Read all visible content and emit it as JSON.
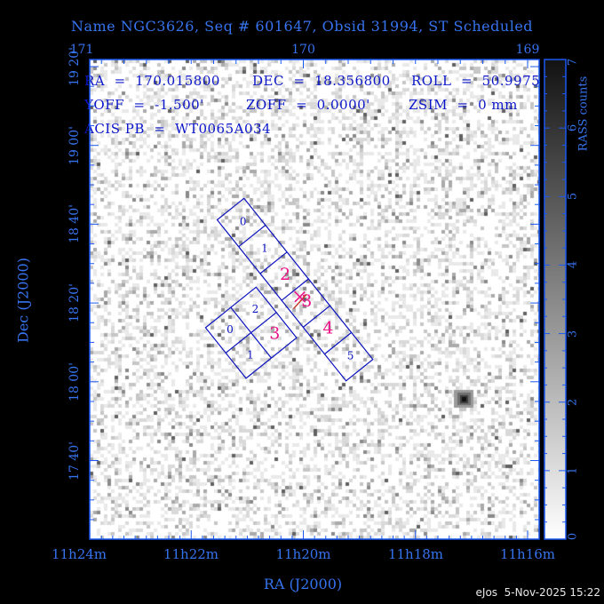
{
  "title": "Name NGC3626, Seq # 601647, Obsid 31994, ST Scheduled",
  "info": {
    "ra": "RA  =  170.015800",
    "dec": "DEC  =  18.356800",
    "roll": "ROLL  =  50.9975",
    "yoff": "YOFF  =  -1.500'",
    "zoff": "ZOFF  =  0.0000'",
    "zsim": "ZSIM  =  0 mm",
    "acis_pb": "ACIS PB  =  WT0065A034"
  },
  "axes": {
    "x_top": {
      "labels": [
        "171",
        "170",
        "169"
      ]
    },
    "x_bottom": {
      "labels": [
        "11h24m",
        "11h22m",
        "11h20m",
        "11h18m",
        "11h16m"
      ],
      "title": "RA (J2000)"
    },
    "y_left": {
      "labels": [
        "19 20'",
        "19 00'",
        "18 40'",
        "18 20'",
        "18 00'",
        "17 40'"
      ],
      "title": "Dec (J2000)"
    }
  },
  "colorbar": {
    "title": "RASS counts",
    "labels": [
      "7",
      "6",
      "5",
      "4",
      "3",
      "2",
      "1",
      "0"
    ],
    "top_value": 7,
    "bottom_value": 0,
    "gradient": [
      "#121212",
      "#ffffff"
    ]
  },
  "chips": {
    "s_labels": [
      "0",
      "1",
      "2",
      "3",
      "4",
      "5"
    ],
    "i_labels": [
      "0",
      "1",
      "2",
      "3"
    ],
    "s_active": [
      2,
      3,
      4
    ],
    "i_active": [
      3
    ]
  },
  "aimpoint_marker": "x-cross-with-red-line",
  "footer": "eJos  5-Nov-2025 15:22",
  "colors": {
    "frame_blue": "#1b59f2",
    "label_blue": "#3673ee",
    "info_blue": "#0b16c9",
    "chip_blue": "#0a12bd",
    "active_magenta": "#ed1389",
    "marker_red": "#c5372b",
    "background": "#000000",
    "image_background": "#ffffff"
  }
}
